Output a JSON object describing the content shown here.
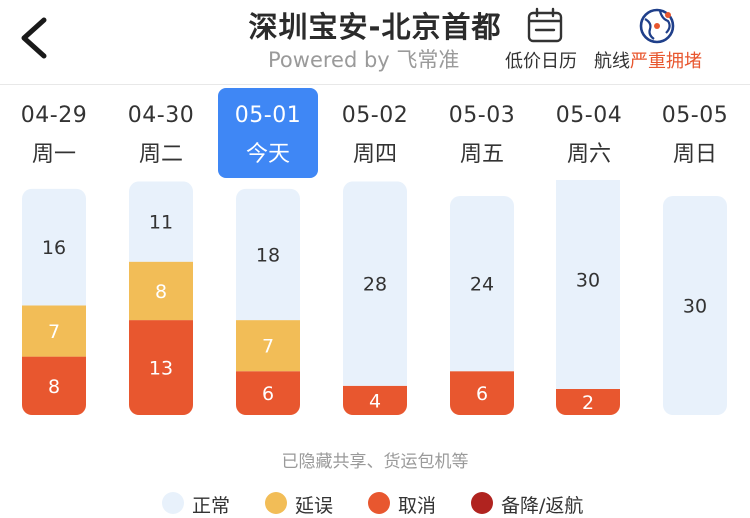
{
  "header": {
    "title": "深圳宝安-北京首都",
    "subtitle": "Powered by 飞常准",
    "low_price_calendar": "低价日历",
    "route_label": "航线",
    "route_status": "严重拥堵"
  },
  "dates": [
    {
      "date": "04-29",
      "weekday": "周一",
      "active": false
    },
    {
      "date": "04-30",
      "weekday": "周二",
      "active": false
    },
    {
      "date": "05-01",
      "weekday": "今天",
      "active": true
    },
    {
      "date": "05-02",
      "weekday": "周四",
      "active": false
    },
    {
      "date": "05-03",
      "weekday": "周五",
      "active": false
    },
    {
      "date": "05-04",
      "weekday": "周六",
      "active": false
    },
    {
      "date": "05-05",
      "weekday": "周日",
      "active": false
    }
  ],
  "note": "已隐藏共享、货运包机等",
  "colors": {
    "normal": "#e8f1fb",
    "delay": "#f2bd57",
    "cancel": "#e8572f",
    "diverted": "#b0231f",
    "active": "#3f87f5",
    "alert": "#e8572f"
  },
  "chart_data": {
    "type": "bar",
    "stacked": true,
    "categories": [
      "04-29",
      "04-30",
      "05-01",
      "05-02",
      "05-03",
      "05-04",
      "05-05"
    ],
    "series": [
      {
        "name": "取消",
        "values": [
          8,
          13,
          6,
          4,
          6,
          2,
          0
        ],
        "color": "#e8572f"
      },
      {
        "name": "延误",
        "values": [
          7,
          8,
          7,
          0,
          0,
          0,
          0
        ],
        "color": "#f2bd57"
      },
      {
        "name": "正常",
        "values": [
          16,
          11,
          18,
          28,
          24,
          30,
          30
        ],
        "color": "#e8f1fb"
      },
      {
        "name": "备降/返航",
        "values": [
          0,
          0,
          0,
          0,
          0,
          0,
          0
        ],
        "color": "#b0231f"
      }
    ],
    "legend": [
      "正常",
      "延误",
      "取消",
      "备降/返航"
    ],
    "legend_position": "bottom",
    "grid": false,
    "data_labels": true
  }
}
